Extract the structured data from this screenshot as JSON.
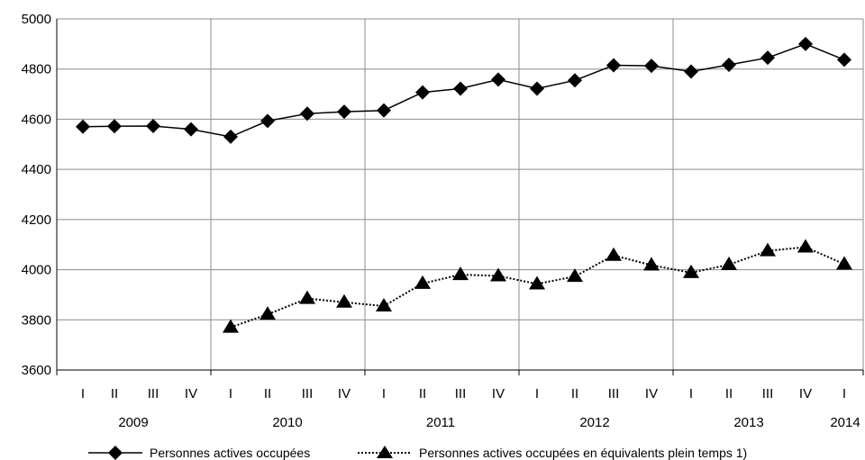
{
  "chart_data": {
    "type": "line",
    "title": "",
    "xlabel": "",
    "ylabel": "",
    "ylim": [
      3600,
      5000
    ],
    "yticks": [
      "3600",
      "3800",
      "4000",
      "4200",
      "4400",
      "4600",
      "4800",
      "5000"
    ],
    "grid": true,
    "legend": "bottom",
    "categories": [
      "I",
      "II",
      "III",
      "IV",
      "I",
      "II",
      "III",
      "IV",
      "I",
      "II",
      "III",
      "IV",
      "I",
      "II",
      "III",
      "IV",
      "I",
      "II",
      "III",
      "IV",
      "I"
    ],
    "years": [
      "2009",
      "2010",
      "2011",
      "2012",
      "2013",
      "2014"
    ],
    "series": [
      {
        "name": "Personnes actives occupées",
        "marker": "diamond",
        "line": "solid",
        "values": [
          4570,
          4572,
          4573,
          4560,
          4530,
          4593,
          4622,
          4630,
          4635,
          4707,
          4722,
          4758,
          4722,
          4755,
          4815,
          4813,
          4790,
          4817,
          4845,
          4900,
          4837
        ]
      },
      {
        "name": "Personnes actives occupées en équivalents plein temps 1)",
        "marker": "triangle",
        "line": "dotted",
        "values": [
          null,
          null,
          null,
          null,
          3770,
          3822,
          3885,
          3870,
          3855,
          3945,
          3980,
          3975,
          3943,
          3973,
          4057,
          4018,
          3988,
          4020,
          4075,
          4090,
          4022
        ]
      }
    ]
  }
}
